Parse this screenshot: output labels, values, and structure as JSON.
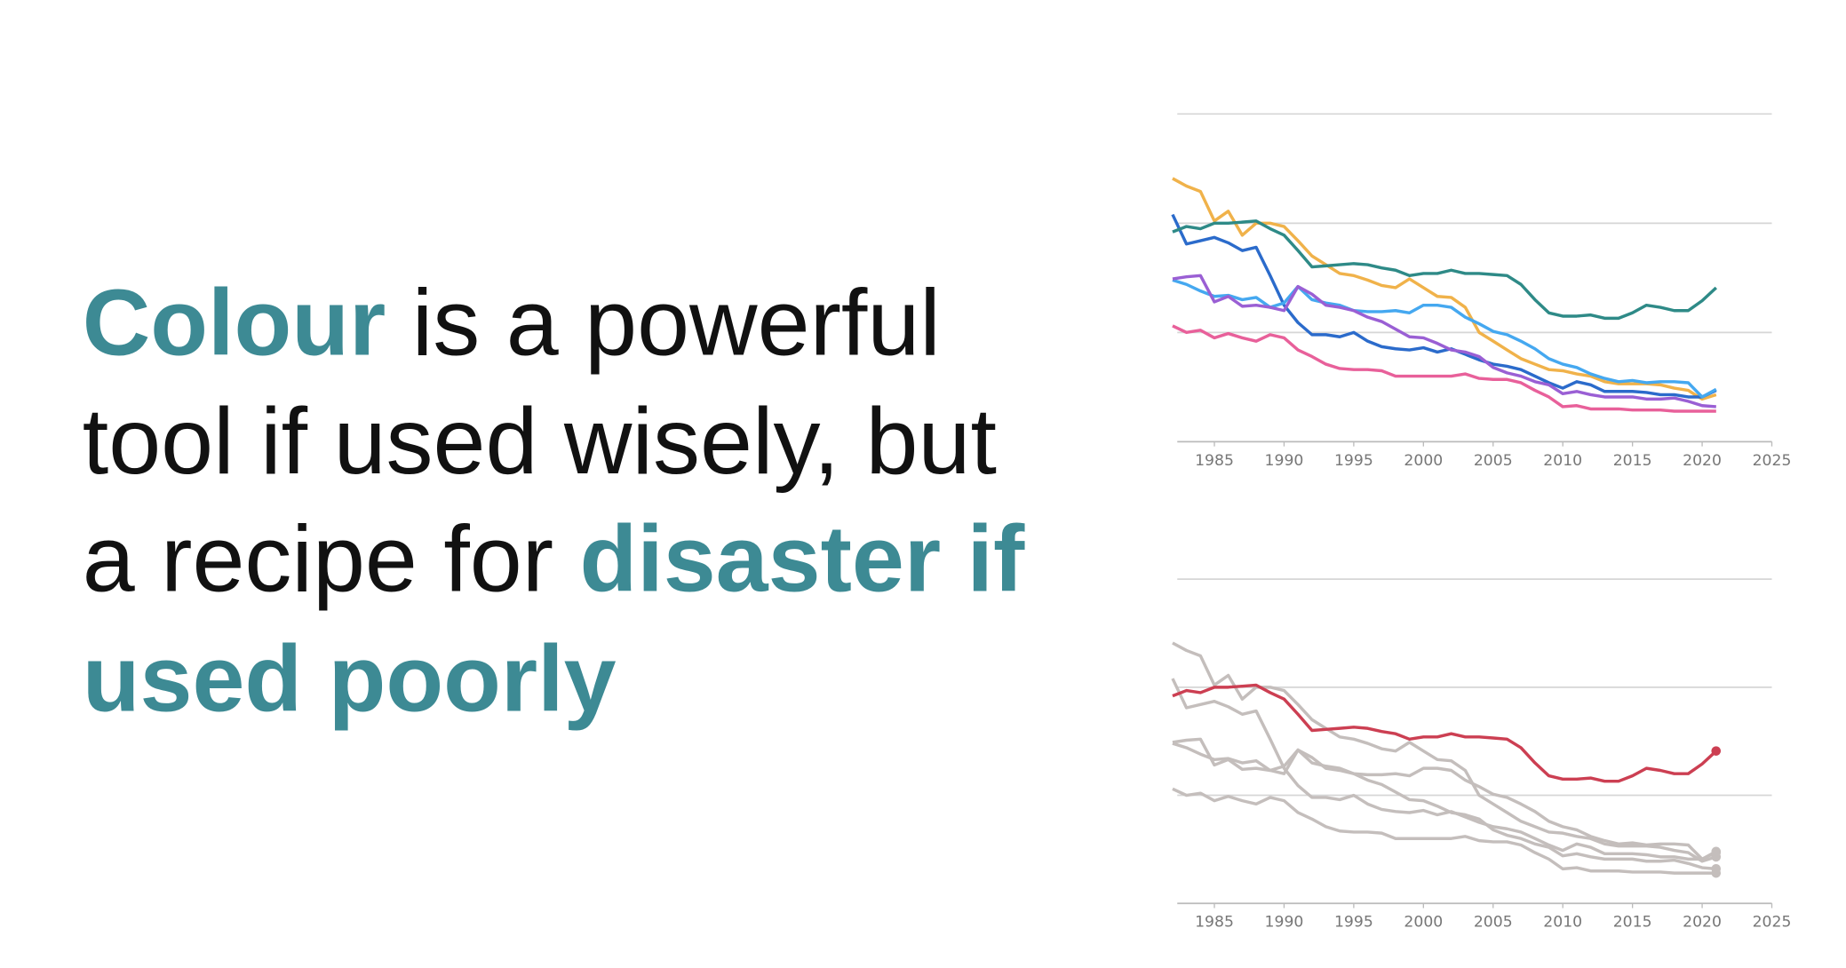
{
  "headline": [
    "Colour",
    "is a powerful",
    "tool if used wisely, but",
    "a recipe for",
    "disaster if",
    "used poorly"
  ],
  "chart_data": [
    {
      "type": "line",
      "x": [
        1982,
        1983,
        1984,
        1985,
        1986,
        1987,
        1988,
        1989,
        1990,
        1991,
        1992,
        1993,
        1994,
        1995,
        1996,
        1997,
        1998,
        1999,
        2000,
        2001,
        2002,
        2003,
        2004,
        2005,
        2006,
        2007,
        2008,
        2009,
        2010,
        2011,
        2012,
        2013,
        2014,
        2015,
        2016,
        2017,
        2018,
        2019,
        2020,
        2021
      ],
      "xlim": [
        1982,
        2025
      ],
      "xticks": [
        1985,
        1990,
        1995,
        2000,
        2005,
        2010,
        2015,
        2020,
        2025
      ],
      "ylim": [
        0,
        30
      ],
      "yticks": [
        0,
        10,
        20,
        30
      ],
      "ytick_labels": false,
      "grid": true,
      "end_markers": false,
      "series": [
        {
          "color": "#f0b24a",
          "values": [
            24.1,
            23.4,
            22.9,
            20.2,
            21.1,
            18.9,
            20.0,
            20.0,
            19.7,
            18.4,
            17.0,
            16.2,
            15.4,
            15.2,
            14.8,
            14.3,
            14.1,
            14.9,
            14.1,
            13.3,
            13.2,
            12.3,
            10.0,
            9.2,
            8.4,
            7.6,
            7.1,
            6.6,
            6.5,
            6.2,
            6.0,
            5.5,
            5.3,
            5.3,
            5.3,
            5.2,
            4.9,
            4.7,
            3.9,
            4.3
          ]
        },
        {
          "color": "#2b6bcb",
          "values": [
            20.8,
            18.1,
            18.4,
            18.7,
            18.2,
            17.5,
            17.8,
            15.2,
            12.5,
            10.9,
            9.8,
            9.8,
            9.6,
            10.0,
            9.2,
            8.7,
            8.5,
            8.4,
            8.6,
            8.2,
            8.5,
            8.0,
            7.5,
            7.1,
            6.9,
            6.6,
            6.0,
            5.4,
            4.9,
            5.5,
            5.2,
            4.6,
            4.6,
            4.6,
            4.5,
            4.3,
            4.3,
            4.1,
            4.1,
            4.7
          ]
        },
        {
          "color": "#45a8f0",
          "values": [
            14.8,
            14.4,
            13.8,
            13.3,
            13.4,
            13.0,
            13.2,
            12.3,
            12.7,
            14.2,
            13.0,
            12.7,
            12.5,
            12.0,
            11.9,
            11.9,
            12.0,
            11.8,
            12.5,
            12.5,
            12.3,
            11.4,
            10.8,
            10.1,
            9.8,
            9.2,
            8.5,
            7.6,
            7.1,
            6.8,
            6.2,
            5.8,
            5.5,
            5.6,
            5.4,
            5.5,
            5.5,
            5.4,
            4.1,
            4.8
          ]
        },
        {
          "color": "#9a5fd4",
          "values": [
            14.9,
            15.1,
            15.2,
            12.8,
            13.3,
            12.4,
            12.5,
            12.3,
            12.0,
            14.2,
            13.5,
            12.5,
            12.3,
            12.0,
            11.4,
            11.0,
            10.3,
            9.6,
            9.5,
            9.0,
            8.4,
            8.2,
            7.8,
            6.8,
            6.3,
            6.0,
            5.5,
            5.2,
            4.4,
            4.6,
            4.3,
            4.1,
            4.1,
            4.1,
            3.9,
            3.9,
            4.0,
            3.7,
            3.3,
            3.2
          ]
        },
        {
          "color": "#e8609a",
          "values": [
            10.6,
            10.0,
            10.2,
            9.5,
            9.9,
            9.5,
            9.2,
            9.8,
            9.5,
            8.4,
            7.8,
            7.1,
            6.7,
            6.6,
            6.6,
            6.5,
            6.0,
            6.0,
            6.0,
            6.0,
            6.0,
            6.2,
            5.8,
            5.7,
            5.7,
            5.4,
            4.7,
            4.1,
            3.2,
            3.3,
            3.0,
            3.0,
            3.0,
            2.9,
            2.9,
            2.9,
            2.8,
            2.8,
            2.8,
            2.8
          ]
        },
        {
          "color": "#2e8a87",
          "values": [
            19.2,
            19.7,
            19.5,
            20.0,
            20.0,
            20.1,
            20.2,
            19.5,
            18.9,
            17.5,
            16.0,
            16.1,
            16.2,
            16.3,
            16.2,
            15.9,
            15.7,
            15.2,
            15.4,
            15.4,
            15.7,
            15.4,
            15.4,
            15.3,
            15.2,
            14.4,
            13.0,
            11.8,
            11.5,
            11.5,
            11.6,
            11.3,
            11.3,
            11.8,
            12.5,
            12.3,
            12.0,
            12.0,
            12.9,
            14.1
          ]
        }
      ]
    },
    {
      "type": "line",
      "x": [
        1982,
        1983,
        1984,
        1985,
        1986,
        1987,
        1988,
        1989,
        1990,
        1991,
        1992,
        1993,
        1994,
        1995,
        1996,
        1997,
        1998,
        1999,
        2000,
        2001,
        2002,
        2003,
        2004,
        2005,
        2006,
        2007,
        2008,
        2009,
        2010,
        2011,
        2012,
        2013,
        2014,
        2015,
        2016,
        2017,
        2018,
        2019,
        2020,
        2021
      ],
      "xlim": [
        1982,
        2025
      ],
      "xticks": [
        1985,
        1990,
        1995,
        2000,
        2005,
        2010,
        2015,
        2020,
        2025
      ],
      "ylim": [
        0,
        30
      ],
      "yticks": [
        0,
        10,
        20,
        30
      ],
      "ytick_labels": false,
      "grid": true,
      "end_markers": true,
      "series": [
        {
          "color": "#c4bebc",
          "values": [
            24.1,
            23.4,
            22.9,
            20.2,
            21.1,
            18.9,
            20.0,
            20.0,
            19.7,
            18.4,
            17.0,
            16.2,
            15.4,
            15.2,
            14.8,
            14.3,
            14.1,
            14.9,
            14.1,
            13.3,
            13.2,
            12.3,
            10.0,
            9.2,
            8.4,
            7.6,
            7.1,
            6.6,
            6.5,
            6.2,
            6.0,
            5.5,
            5.3,
            5.3,
            5.3,
            5.2,
            4.9,
            4.7,
            3.9,
            4.3
          ]
        },
        {
          "color": "#c4bebc",
          "values": [
            20.8,
            18.1,
            18.4,
            18.7,
            18.2,
            17.5,
            17.8,
            15.2,
            12.5,
            10.9,
            9.8,
            9.8,
            9.6,
            10.0,
            9.2,
            8.7,
            8.5,
            8.4,
            8.6,
            8.2,
            8.5,
            8.0,
            7.5,
            7.1,
            6.9,
            6.6,
            6.0,
            5.4,
            4.9,
            5.5,
            5.2,
            4.6,
            4.6,
            4.6,
            4.5,
            4.3,
            4.3,
            4.1,
            4.1,
            4.7
          ]
        },
        {
          "color": "#c4bebc",
          "values": [
            14.8,
            14.4,
            13.8,
            13.3,
            13.4,
            13.0,
            13.2,
            12.3,
            12.7,
            14.2,
            13.0,
            12.7,
            12.5,
            12.0,
            11.9,
            11.9,
            12.0,
            11.8,
            12.5,
            12.5,
            12.3,
            11.4,
            10.8,
            10.1,
            9.8,
            9.2,
            8.5,
            7.6,
            7.1,
            6.8,
            6.2,
            5.8,
            5.5,
            5.6,
            5.4,
            5.5,
            5.5,
            5.4,
            4.1,
            4.8
          ]
        },
        {
          "color": "#c4bebc",
          "values": [
            14.9,
            15.1,
            15.2,
            12.8,
            13.3,
            12.4,
            12.5,
            12.3,
            12.0,
            14.2,
            13.5,
            12.5,
            12.3,
            12.0,
            11.4,
            11.0,
            10.3,
            9.6,
            9.5,
            9.0,
            8.4,
            8.2,
            7.8,
            6.8,
            6.3,
            6.0,
            5.5,
            5.2,
            4.4,
            4.6,
            4.3,
            4.1,
            4.1,
            4.1,
            3.9,
            3.9,
            4.0,
            3.7,
            3.3,
            3.2
          ]
        },
        {
          "color": "#c4bebc",
          "values": [
            10.6,
            10.0,
            10.2,
            9.5,
            9.9,
            9.5,
            9.2,
            9.8,
            9.5,
            8.4,
            7.8,
            7.1,
            6.7,
            6.6,
            6.6,
            6.5,
            6.0,
            6.0,
            6.0,
            6.0,
            6.0,
            6.2,
            5.8,
            5.7,
            5.7,
            5.4,
            4.7,
            4.1,
            3.2,
            3.3,
            3.0,
            3.0,
            3.0,
            2.9,
            2.9,
            2.9,
            2.8,
            2.8,
            2.8,
            2.8
          ]
        },
        {
          "color": "#cc3f52",
          "values": [
            19.2,
            19.7,
            19.5,
            20.0,
            20.0,
            20.1,
            20.2,
            19.5,
            18.9,
            17.5,
            16.0,
            16.1,
            16.2,
            16.3,
            16.2,
            15.9,
            15.7,
            15.2,
            15.4,
            15.4,
            15.7,
            15.4,
            15.4,
            15.3,
            15.2,
            14.4,
            13.0,
            11.8,
            11.5,
            11.5,
            11.6,
            11.3,
            11.3,
            11.8,
            12.5,
            12.3,
            12.0,
            12.0,
            12.9,
            14.1
          ]
        }
      ]
    }
  ]
}
